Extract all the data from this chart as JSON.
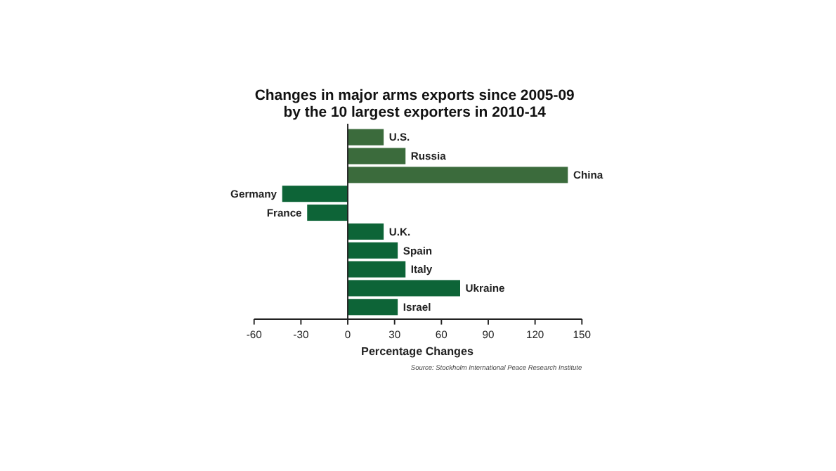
{
  "chart_data": {
    "type": "bar",
    "orientation": "horizontal",
    "title": "Changes in major arms exports since 2005-09\nby the 10 largest exporters in 2010-14",
    "xlabel": "Percentage Changes",
    "categories": [
      "U.S.",
      "Russia",
      "China",
      "Germany",
      "France",
      "U.K.",
      "Spain",
      "Italy",
      "Ukraine",
      "Israel"
    ],
    "values": [
      23,
      37,
      141,
      -42,
      -26,
      23,
      32,
      37,
      72,
      32
    ],
    "colors": [
      "#3b6b3c",
      "#3b6b3c",
      "#3b6b3c",
      "#0d6437",
      "#0d6437",
      "#0d6437",
      "#0d6437",
      "#0d6437",
      "#0d6437",
      "#0d6437"
    ],
    "xlim": [
      -60,
      150
    ],
    "xticks": [
      -60,
      -30,
      0,
      30,
      60,
      90,
      120,
      150
    ],
    "annotations": [
      "Source: Stockholm International Peace Research Institute"
    ]
  }
}
